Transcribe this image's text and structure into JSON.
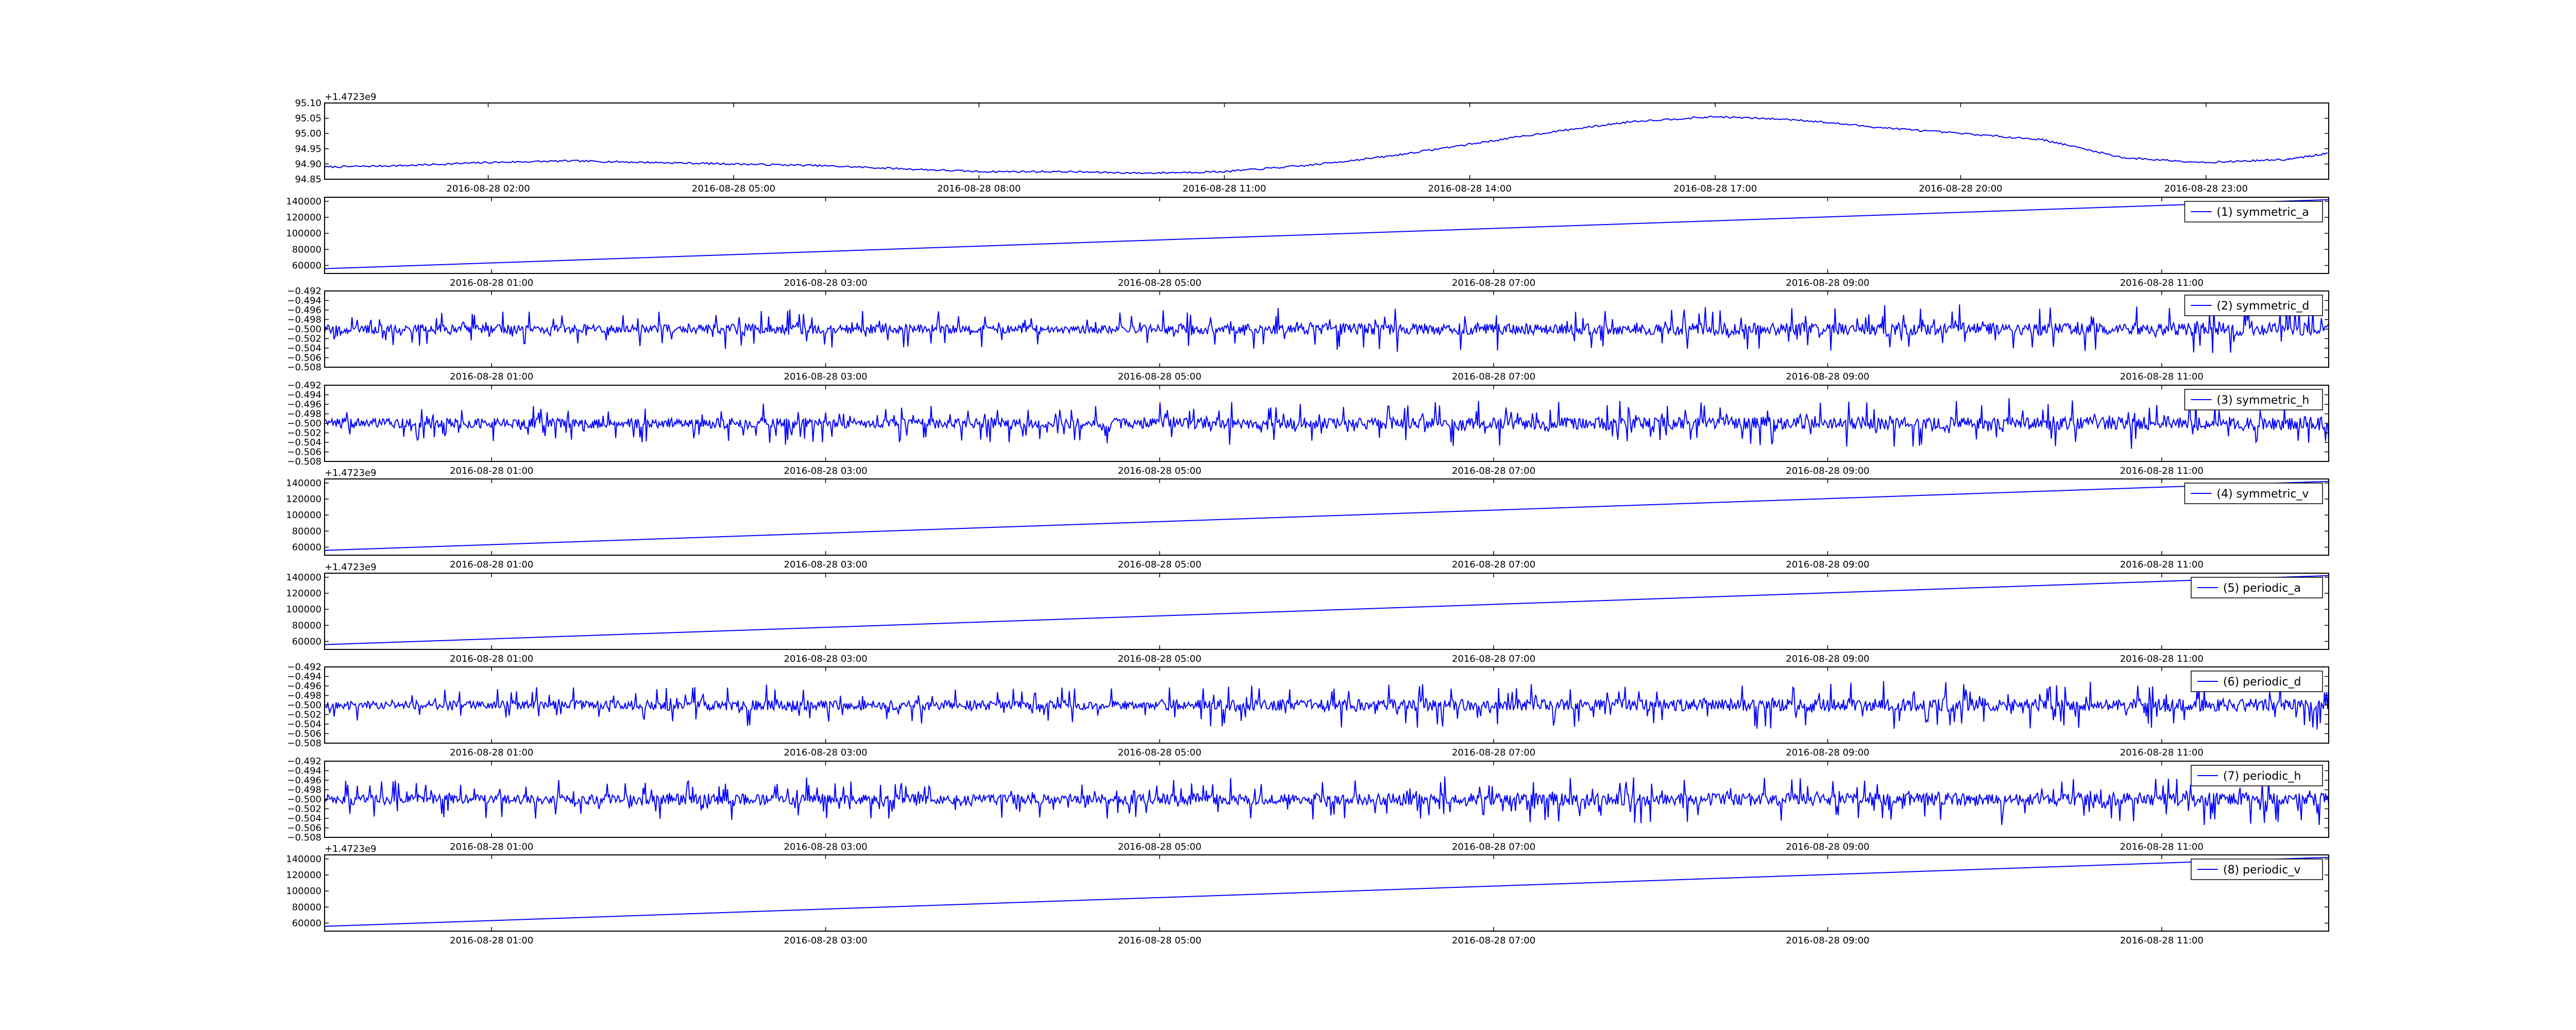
{
  "series_color": "#0000ff",
  "chart_data": [
    {
      "type": "line",
      "title": "",
      "xlabel": "",
      "ylabel": "",
      "legend": "",
      "legend_position": "none",
      "grid": false,
      "y_offset_label": "+1.4723e9",
      "xlim": [
        "2016-08-28 00:00",
        "2016-08-29 00:30"
      ],
      "ylim": [
        94.85,
        95.1
      ],
      "yticks": [
        "94.85",
        "94.90",
        "94.95",
        "95.00",
        "95.05",
        "95.10"
      ],
      "xticks": [
        "2016-08-28 02:00",
        "2016-08-28 05:00",
        "2016-08-28 08:00",
        "2016-08-28 11:00",
        "2016-08-28 14:00",
        "2016-08-28 17:00",
        "2016-08-28 20:00",
        "2016-08-28 23:00"
      ],
      "x": [
        "2016-08-28 00:00",
        "2016-08-28 01:00",
        "2016-08-28 02:00",
        "2016-08-28 03:00",
        "2016-08-28 04:00",
        "2016-08-28 05:00",
        "2016-08-28 06:00",
        "2016-08-28 07:00",
        "2016-08-28 08:00",
        "2016-08-28 09:00",
        "2016-08-28 10:00",
        "2016-08-28 11:00",
        "2016-08-28 12:00",
        "2016-08-28 13:00",
        "2016-08-28 14:00",
        "2016-08-28 15:00",
        "2016-08-28 16:00",
        "2016-08-28 17:00",
        "2016-08-28 18:00",
        "2016-08-28 19:00",
        "2016-08-28 20:00",
        "2016-08-28 21:00",
        "2016-08-28 22:00",
        "2016-08-28 23:00",
        "2016-08-29 00:00",
        "2016-08-29 00:30"
      ],
      "values": [
        94.89,
        94.895,
        94.905,
        94.91,
        94.905,
        94.9,
        94.895,
        94.885,
        94.875,
        94.875,
        94.87,
        94.875,
        94.895,
        94.925,
        94.965,
        95.005,
        95.04,
        95.055,
        95.045,
        95.02,
        95.0,
        94.98,
        94.92,
        94.905,
        94.915,
        94.935
      ]
    },
    {
      "type": "line",
      "legend": "(1) symmetric_a",
      "legend_position": "top-right",
      "grid": false,
      "y_offset_label": "",
      "xlim": [
        "2016-08-28 00:00",
        "2016-08-28 12:00"
      ],
      "ylim": [
        50000,
        145000
      ],
      "yticks": [
        "60000",
        "80000",
        "100000",
        "120000",
        "140000"
      ],
      "xticks": [
        "2016-08-28 01:00",
        "2016-08-28 03:00",
        "2016-08-28 05:00",
        "2016-08-28 07:00",
        "2016-08-28 09:00",
        "2016-08-28 11:00"
      ],
      "x": [
        "2016-08-28 00:00",
        "2016-08-28 12:00"
      ],
      "values": [
        56000,
        142000
      ]
    },
    {
      "type": "line",
      "legend": "(2) symmetric_d",
      "legend_position": "top-right",
      "grid": false,
      "y_offset_label": "",
      "xlim": [
        "2016-08-28 00:00",
        "2016-08-28 12:00"
      ],
      "ylim": [
        -0.508,
        -0.492
      ],
      "yticks": [
        "−0.508",
        "−0.506",
        "−0.504",
        "−0.502",
        "−0.500",
        "−0.498",
        "−0.496",
        "−0.494",
        "−0.492"
      ],
      "xticks": [
        "2016-08-28 01:00",
        "2016-08-28 03:00",
        "2016-08-28 05:00",
        "2016-08-28 07:00",
        "2016-08-28 09:00",
        "2016-08-28 11:00"
      ],
      "mean": -0.5,
      "amplitude_profile": [
        0.0035,
        0.0038,
        0.0042,
        0.004,
        0.0038,
        0.0045,
        0.0048,
        0.0046,
        0.005,
        0.0052,
        0.0049,
        0.0053
      ]
    },
    {
      "type": "line",
      "legend": "(3) symmetric_h",
      "legend_position": "top-right",
      "grid": false,
      "y_offset_label": "",
      "xlim": [
        "2016-08-28 00:00",
        "2016-08-28 12:00"
      ],
      "ylim": [
        -0.508,
        -0.492
      ],
      "yticks": [
        "−0.508",
        "−0.506",
        "−0.504",
        "−0.502",
        "−0.500",
        "−0.498",
        "−0.496",
        "−0.494",
        "−0.492"
      ],
      "xticks": [
        "2016-08-28 01:00",
        "2016-08-28 03:00",
        "2016-08-28 05:00",
        "2016-08-28 07:00",
        "2016-08-28 09:00",
        "2016-08-28 11:00"
      ],
      "mean": -0.5,
      "amplitude_profile": [
        0.004,
        0.0042,
        0.0045,
        0.004,
        0.0042,
        0.0046,
        0.0048,
        0.005,
        0.0052,
        0.005,
        0.0054,
        0.0055
      ]
    },
    {
      "type": "line",
      "legend": "(4) symmetric_v",
      "legend_position": "top-right",
      "grid": false,
      "y_offset_label": "+1.4723e9",
      "xlim": [
        "2016-08-28 00:00",
        "2016-08-28 12:00"
      ],
      "ylim": [
        50000,
        145000
      ],
      "yticks": [
        "60000",
        "80000",
        "100000",
        "120000",
        "140000"
      ],
      "xticks": [
        "2016-08-28 01:00",
        "2016-08-28 03:00",
        "2016-08-28 05:00",
        "2016-08-28 07:00",
        "2016-08-28 09:00",
        "2016-08-28 11:00"
      ],
      "x": [
        "2016-08-28 00:00",
        "2016-08-28 12:00"
      ],
      "values": [
        56000,
        142000
      ]
    },
    {
      "type": "line",
      "legend": "(5) periodic_a",
      "legend_position": "top-right",
      "grid": false,
      "y_offset_label": "+1.4723e9",
      "xlim": [
        "2016-08-28 00:00",
        "2016-08-28 12:00"
      ],
      "ylim": [
        50000,
        145000
      ],
      "yticks": [
        "60000",
        "80000",
        "100000",
        "120000",
        "140000"
      ],
      "xticks": [
        "2016-08-28 01:00",
        "2016-08-28 03:00",
        "2016-08-28 05:00",
        "2016-08-28 07:00",
        "2016-08-28 09:00",
        "2016-08-28 11:00"
      ],
      "x": [
        "2016-08-28 00:00",
        "2016-08-28 12:00"
      ],
      "values": [
        56000,
        142000
      ]
    },
    {
      "type": "line",
      "legend": "(6) periodic_d",
      "legend_position": "top-right",
      "grid": false,
      "y_offset_label": "",
      "xlim": [
        "2016-08-28 00:00",
        "2016-08-28 12:00"
      ],
      "ylim": [
        -0.508,
        -0.492
      ],
      "yticks": [
        "−0.508",
        "−0.506",
        "−0.504",
        "−0.502",
        "−0.500",
        "−0.498",
        "−0.496",
        "−0.494",
        "−0.492"
      ],
      "xticks": [
        "2016-08-28 01:00",
        "2016-08-28 03:00",
        "2016-08-28 05:00",
        "2016-08-28 07:00",
        "2016-08-28 09:00",
        "2016-08-28 11:00"
      ],
      "mean": -0.5,
      "amplitude_profile": [
        0.0035,
        0.0038,
        0.0044,
        0.004,
        0.0039,
        0.0046,
        0.0048,
        0.0047,
        0.005,
        0.0052,
        0.005,
        0.0053
      ]
    },
    {
      "type": "line",
      "legend": "(7) periodic_h",
      "legend_position": "top-right",
      "grid": false,
      "y_offset_label": "",
      "xlim": [
        "2016-08-28 00:00",
        "2016-08-28 12:00"
      ],
      "ylim": [
        -0.508,
        -0.492
      ],
      "yticks": [
        "−0.508",
        "−0.506",
        "−0.504",
        "−0.502",
        "−0.500",
        "−0.498",
        "−0.496",
        "−0.494",
        "−0.492"
      ],
      "xticks": [
        "2016-08-28 01:00",
        "2016-08-28 03:00",
        "2016-08-28 05:00",
        "2016-08-28 07:00",
        "2016-08-28 09:00",
        "2016-08-28 11:00"
      ],
      "mean": -0.5,
      "amplitude_profile": [
        0.004,
        0.0043,
        0.0046,
        0.0041,
        0.0042,
        0.0046,
        0.0049,
        0.0051,
        0.0052,
        0.0051,
        0.0054,
        0.0056
      ]
    },
    {
      "type": "line",
      "legend": "(8) periodic_v",
      "legend_position": "top-right",
      "grid": false,
      "y_offset_label": "+1.4723e9",
      "xlim": [
        "2016-08-28 00:00",
        "2016-08-28 12:00"
      ],
      "ylim": [
        50000,
        145000
      ],
      "yticks": [
        "60000",
        "80000",
        "100000",
        "120000",
        "140000"
      ],
      "xticks": [
        "2016-08-28 01:00",
        "2016-08-28 03:00",
        "2016-08-28 05:00",
        "2016-08-28 07:00",
        "2016-08-28 09:00",
        "2016-08-28 11:00"
      ],
      "x": [
        "2016-08-28 00:00",
        "2016-08-28 12:00"
      ],
      "values": [
        56000,
        142000
      ]
    }
  ]
}
